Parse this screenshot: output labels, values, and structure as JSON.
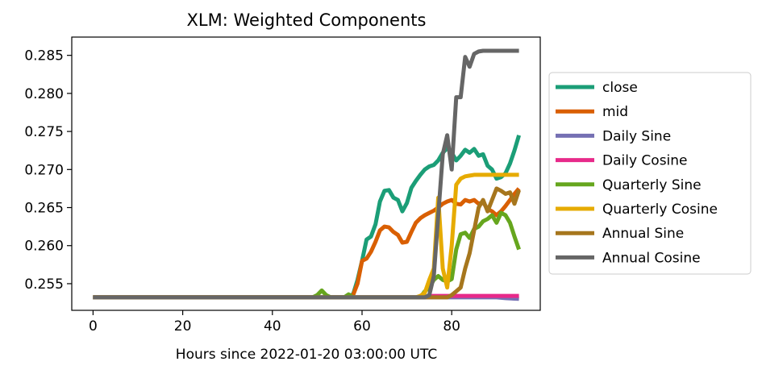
{
  "chart_data": {
    "type": "line",
    "title": "XLM: Weighted Components",
    "xlabel": "Hours since 2022-01-20 03:00:00 UTC",
    "ylabel": "",
    "xlim": [
      -4.75,
      99.75
    ],
    "ylim": [
      0.2515,
      0.2874
    ],
    "xticks": [
      0,
      20,
      40,
      60,
      80
    ],
    "yticks": [
      0.255,
      0.26,
      0.265,
      0.27,
      0.275,
      0.28,
      0.285
    ],
    "ytick_labels": [
      "0.255",
      "0.260",
      "0.265",
      "0.270",
      "0.275",
      "0.280",
      "0.285"
    ],
    "grid": false,
    "legend_position": "center-right-outside",
    "series": [
      {
        "name": "close",
        "color": "#1b9e77",
        "points": [
          [
            0,
            0.2532
          ],
          [
            56,
            0.2532
          ],
          [
            58,
            0.2536
          ],
          [
            59,
            0.2555
          ],
          [
            60,
            0.258
          ],
          [
            61,
            0.2608
          ],
          [
            62,
            0.2612
          ],
          [
            63,
            0.2628
          ],
          [
            64,
            0.2658
          ],
          [
            65,
            0.2672
          ],
          [
            66,
            0.2673
          ],
          [
            67,
            0.2663
          ],
          [
            68,
            0.266
          ],
          [
            69,
            0.2645
          ],
          [
            70,
            0.2656
          ],
          [
            71,
            0.2676
          ],
          [
            72,
            0.2685
          ],
          [
            73,
            0.2693
          ],
          [
            74,
            0.27
          ],
          [
            75,
            0.2704
          ],
          [
            76,
            0.2706
          ],
          [
            77,
            0.2712
          ],
          [
            78,
            0.2722
          ],
          [
            79,
            0.2728
          ],
          [
            80,
            0.2722
          ],
          [
            81,
            0.2712
          ],
          [
            82,
            0.2718
          ],
          [
            83,
            0.2726
          ],
          [
            84,
            0.2722
          ],
          [
            85,
            0.2727
          ],
          [
            86,
            0.2718
          ],
          [
            87,
            0.272
          ],
          [
            88,
            0.2705
          ],
          [
            89,
            0.27
          ],
          [
            90,
            0.2688
          ],
          [
            91,
            0.269
          ],
          [
            92,
            0.2695
          ],
          [
            93,
            0.2708
          ],
          [
            94,
            0.2725
          ],
          [
            95,
            0.2745
          ]
        ]
      },
      {
        "name": "mid",
        "color": "#d95f02",
        "points": [
          [
            0,
            0.2532
          ],
          [
            56,
            0.2532
          ],
          [
            58,
            0.2535
          ],
          [
            59,
            0.255
          ],
          [
            60,
            0.258
          ],
          [
            61,
            0.2583
          ],
          [
            62,
            0.2592
          ],
          [
            63,
            0.2605
          ],
          [
            64,
            0.262
          ],
          [
            65,
            0.2625
          ],
          [
            66,
            0.2624
          ],
          [
            67,
            0.2618
          ],
          [
            68,
            0.2614
          ],
          [
            69,
            0.2604
          ],
          [
            70,
            0.2605
          ],
          [
            71,
            0.2618
          ],
          [
            72,
            0.263
          ],
          [
            73,
            0.2636
          ],
          [
            74,
            0.264
          ],
          [
            75,
            0.2643
          ],
          [
            76,
            0.2646
          ],
          [
            77,
            0.265
          ],
          [
            78,
            0.2655
          ],
          [
            79,
            0.2658
          ],
          [
            80,
            0.266
          ],
          [
            81,
            0.2655
          ],
          [
            82,
            0.2654
          ],
          [
            83,
            0.266
          ],
          [
            84,
            0.2658
          ],
          [
            85,
            0.266
          ],
          [
            86,
            0.2655
          ],
          [
            87,
            0.2657
          ],
          [
            88,
            0.2648
          ],
          [
            89,
            0.2645
          ],
          [
            90,
            0.264
          ],
          [
            91,
            0.2645
          ],
          [
            92,
            0.2652
          ],
          [
            93,
            0.266
          ],
          [
            94,
            0.2668
          ],
          [
            95,
            0.2675
          ]
        ]
      },
      {
        "name": "Daily Sine",
        "color": "#7570b3",
        "points": [
          [
            0,
            0.2532
          ],
          [
            90,
            0.2532
          ],
          [
            92,
            0.2531
          ],
          [
            95,
            0.253
          ]
        ]
      },
      {
        "name": "Daily Cosine",
        "color": "#e7298a",
        "points": [
          [
            0,
            0.2532
          ],
          [
            74,
            0.2532
          ],
          [
            75,
            0.2534
          ],
          [
            95,
            0.2534
          ]
        ]
      },
      {
        "name": "Quarterly Sine",
        "color": "#66a61e",
        "points": [
          [
            0,
            0.2532
          ],
          [
            49,
            0.2532
          ],
          [
            50,
            0.2535
          ],
          [
            51,
            0.2541
          ],
          [
            52,
            0.2535
          ],
          [
            53,
            0.2532
          ],
          [
            56,
            0.2532
          ],
          [
            57,
            0.2536
          ],
          [
            58,
            0.2532
          ],
          [
            73,
            0.2532
          ],
          [
            74,
            0.254
          ],
          [
            75,
            0.2545
          ],
          [
            76,
            0.2555
          ],
          [
            77,
            0.256
          ],
          [
            78,
            0.2555
          ],
          [
            79,
            0.2553
          ],
          [
            80,
            0.2556
          ],
          [
            81,
            0.2595
          ],
          [
            82,
            0.2615
          ],
          [
            83,
            0.2617
          ],
          [
            84,
            0.261
          ],
          [
            85,
            0.2622
          ],
          [
            86,
            0.2625
          ],
          [
            87,
            0.2632
          ],
          [
            88,
            0.2635
          ],
          [
            89,
            0.264
          ],
          [
            90,
            0.263
          ],
          [
            91,
            0.2643
          ],
          [
            92,
            0.264
          ],
          [
            93,
            0.263
          ],
          [
            94,
            0.2612
          ],
          [
            95,
            0.2595
          ]
        ]
      },
      {
        "name": "Quarterly Cosine",
        "color": "#e6ab02",
        "points": [
          [
            0,
            0.2532
          ],
          [
            72,
            0.2532
          ],
          [
            73,
            0.2534
          ],
          [
            74,
            0.2538
          ],
          [
            75,
            0.2555
          ],
          [
            76,
            0.257
          ],
          [
            77,
            0.2663
          ],
          [
            78,
            0.257
          ],
          [
            79,
            0.2545
          ],
          [
            80,
            0.26
          ],
          [
            81,
            0.268
          ],
          [
            82,
            0.2688
          ],
          [
            83,
            0.2691
          ],
          [
            84,
            0.2692
          ],
          [
            85,
            0.2693
          ],
          [
            95,
            0.2693
          ]
        ]
      },
      {
        "name": "Annual Sine",
        "color": "#a6761d",
        "points": [
          [
            0,
            0.2532
          ],
          [
            76,
            0.2532
          ],
          [
            79,
            0.2532
          ],
          [
            80,
            0.2535
          ],
          [
            81,
            0.254
          ],
          [
            82,
            0.2545
          ],
          [
            83,
            0.257
          ],
          [
            84,
            0.259
          ],
          [
            85,
            0.262
          ],
          [
            86,
            0.265
          ],
          [
            87,
            0.266
          ],
          [
            88,
            0.2645
          ],
          [
            89,
            0.266
          ],
          [
            90,
            0.2675
          ],
          [
            91,
            0.2672
          ],
          [
            92,
            0.2668
          ],
          [
            93,
            0.267
          ],
          [
            94,
            0.2655
          ],
          [
            95,
            0.2673
          ]
        ]
      },
      {
        "name": "Annual Cosine",
        "color": "#666666",
        "points": [
          [
            0,
            0.2532
          ],
          [
            74,
            0.2532
          ],
          [
            75,
            0.2535
          ],
          [
            76,
            0.256
          ],
          [
            77,
            0.264
          ],
          [
            78,
            0.272
          ],
          [
            79,
            0.2745
          ],
          [
            80,
            0.27
          ],
          [
            81,
            0.2795
          ],
          [
            82,
            0.2795
          ],
          [
            83,
            0.2848
          ],
          [
            84,
            0.2835
          ],
          [
            85,
            0.2852
          ],
          [
            86,
            0.2855
          ],
          [
            87,
            0.2856
          ],
          [
            95,
            0.2856
          ]
        ]
      }
    ]
  }
}
